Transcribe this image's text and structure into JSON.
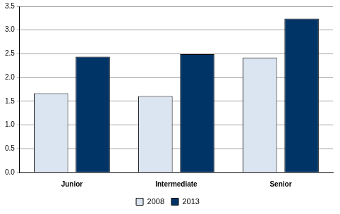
{
  "chart_data": {
    "type": "bar",
    "categories": [
      "Junior",
      "Intermediate",
      "Senior"
    ],
    "series": [
      {
        "name": "2008",
        "color": "#dbe5f1",
        "values": [
          1.67,
          1.61,
          2.42
        ]
      },
      {
        "name": "2013",
        "color": "#003366",
        "values": [
          2.44,
          2.49,
          3.24
        ]
      }
    ],
    "ylim": [
      0,
      3.5
    ],
    "yticks": [
      {
        "value": 0,
        "label": "0.0"
      },
      0.5,
      {
        "value": 1,
        "label": "1.0"
      },
      1.5,
      {
        "value": 2,
        "label": "2.0"
      },
      2.5,
      {
        "value": 3,
        "label": "3.0"
      },
      3.5
    ],
    "grid": true,
    "legend": "bottom"
  }
}
